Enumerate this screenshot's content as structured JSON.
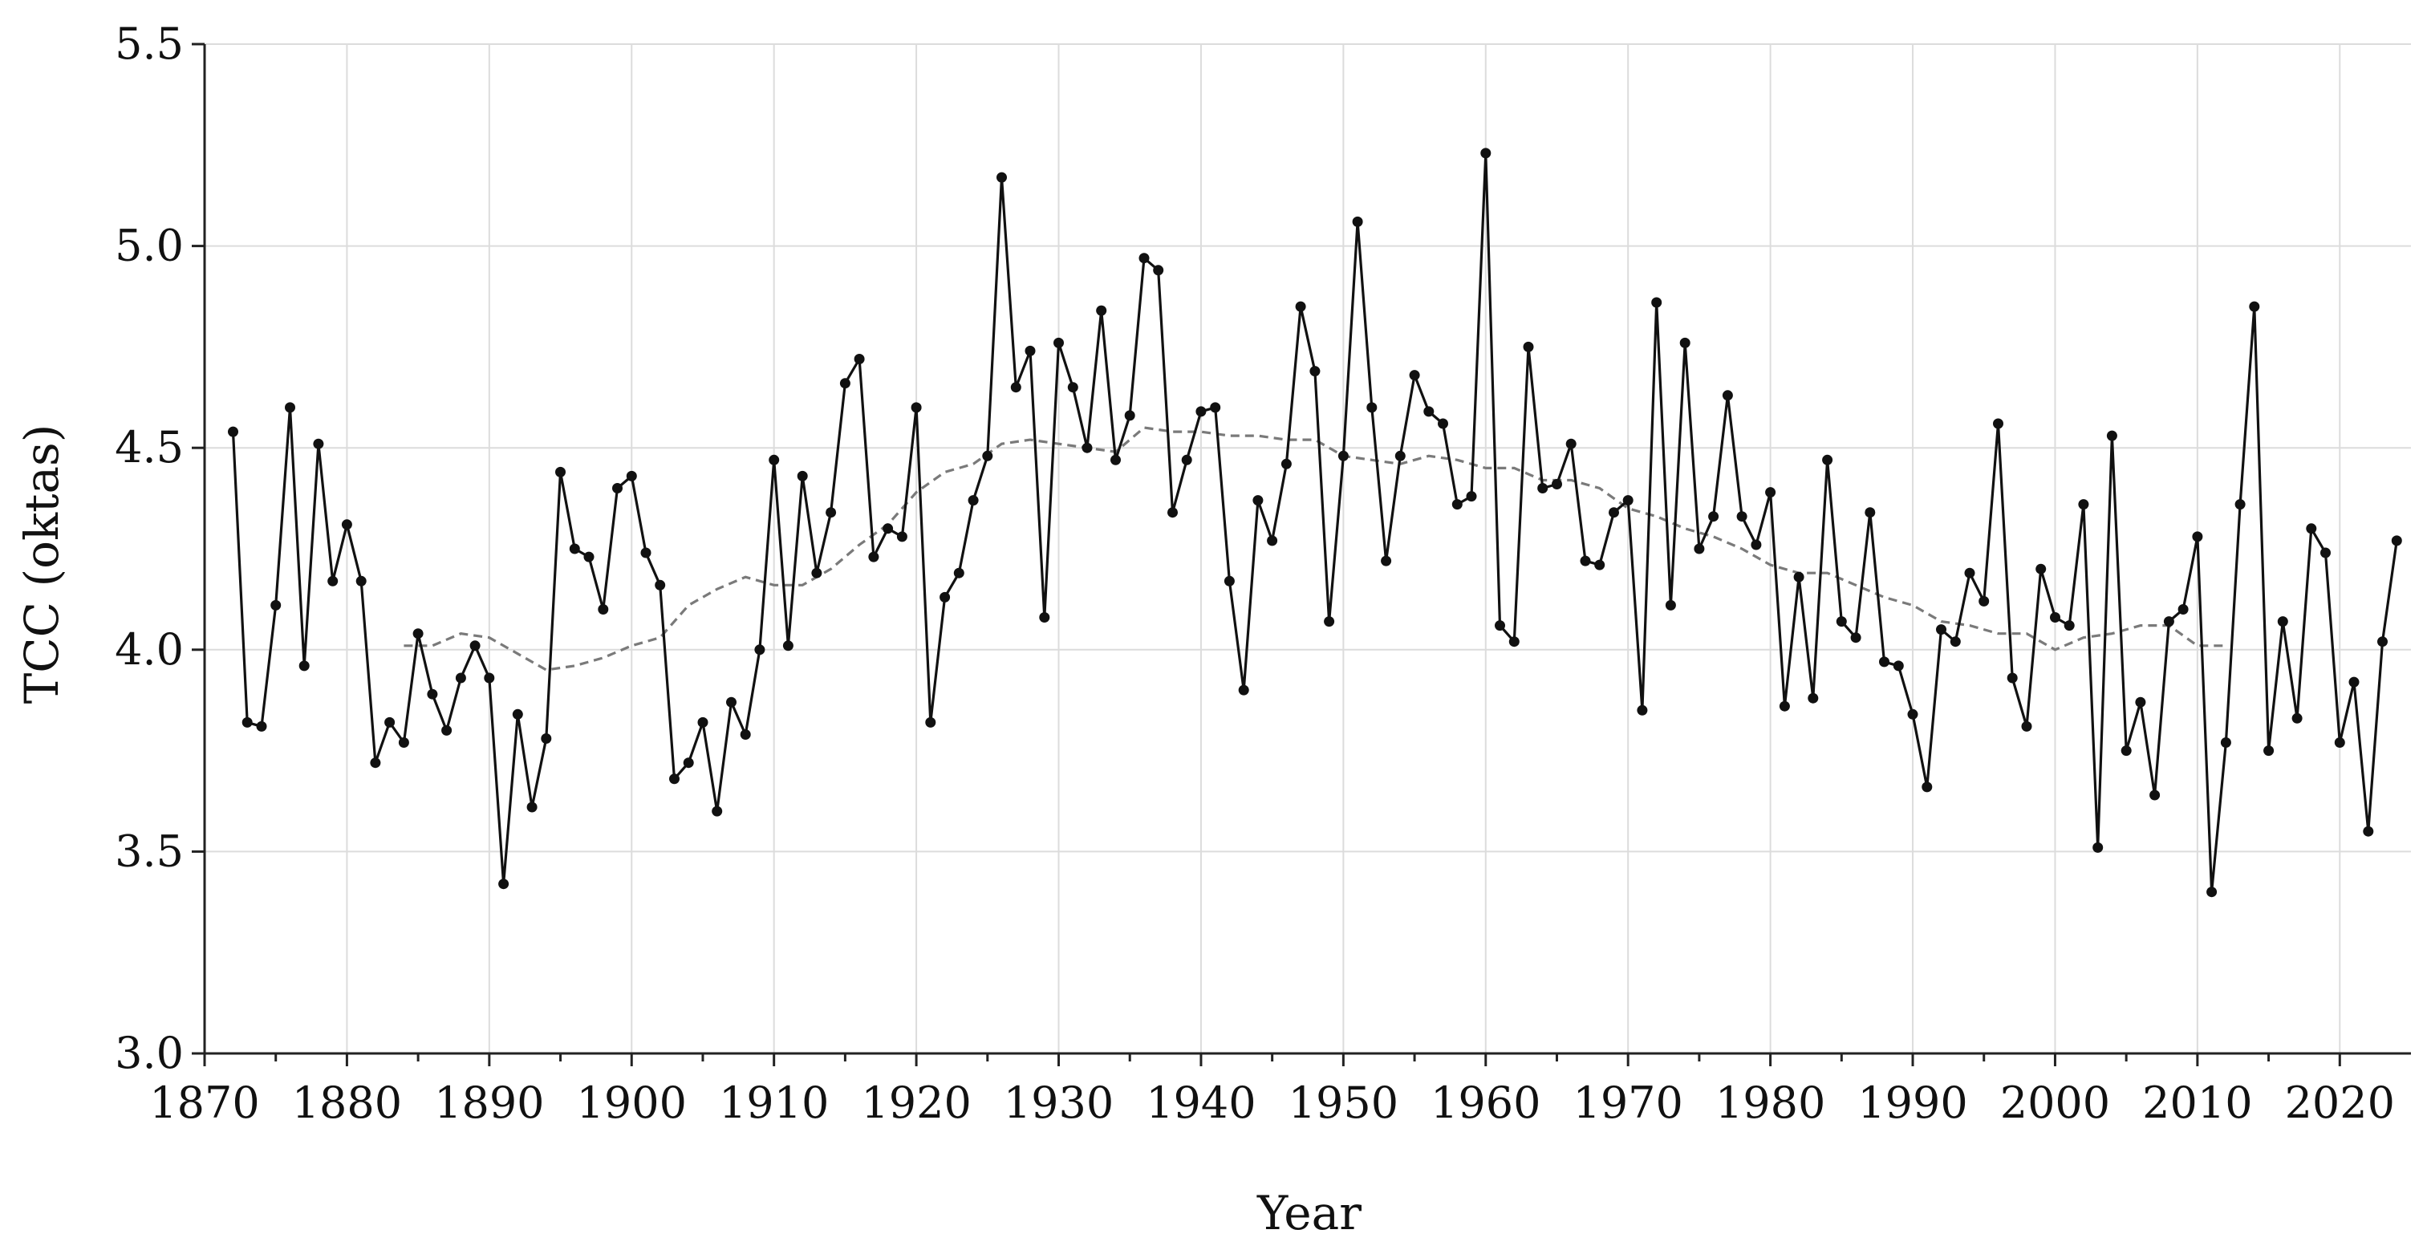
{
  "chart_data": {
    "type": "line",
    "title": "",
    "xlabel": "Year",
    "ylabel": "TCC (oktas)",
    "xlim": [
      1870,
      2025
    ],
    "ylim": [
      3.0,
      5.5
    ],
    "x_ticks": [
      1870,
      1880,
      1890,
      1900,
      1910,
      1920,
      1930,
      1940,
      1950,
      1960,
      1970,
      1980,
      1990,
      2000,
      2010,
      2020
    ],
    "y_ticks": [
      "3.0",
      "3.5",
      "4.0",
      "4.5",
      "5.0",
      "5.5"
    ],
    "grid": true,
    "colors": {
      "series": "#111111",
      "moving_average": "#7a7a7a"
    },
    "series": [
      {
        "style": "solid-markers",
        "x": [
          1872,
          1873,
          1874,
          1875,
          1876,
          1877,
          1878,
          1879,
          1880,
          1881,
          1882,
          1883,
          1884,
          1885,
          1886,
          1887,
          1888,
          1889,
          1890,
          1891,
          1892,
          1893,
          1894,
          1895,
          1896,
          1897,
          1898,
          1899,
          1900,
          1901,
          1902,
          1903,
          1904,
          1905,
          1906,
          1907,
          1908,
          1909,
          1910,
          1911,
          1912,
          1913,
          1914,
          1915,
          1916,
          1917,
          1918,
          1919,
          1920,
          1921,
          1922,
          1923,
          1924,
          1925,
          1926,
          1927,
          1928,
          1929,
          1930,
          1931,
          1932,
          1933,
          1934,
          1935,
          1936,
          1937,
          1938,
          1939,
          1940,
          1941,
          1942,
          1943,
          1944,
          1945,
          1946,
          1947,
          1948,
          1949,
          1950,
          1951,
          1952,
          1953,
          1954,
          1955,
          1956,
          1957,
          1958,
          1959,
          1960,
          1961,
          1962,
          1963,
          1964,
          1965,
          1966,
          1967,
          1968,
          1969,
          1970,
          1971,
          1972,
          1973,
          1974,
          1975,
          1976,
          1977,
          1978,
          1979,
          1980,
          1981,
          1982,
          1983,
          1984,
          1985,
          1986,
          1987,
          1988,
          1989,
          1990,
          1991,
          1992,
          1993,
          1994,
          1995,
          1996,
          1997,
          1998,
          1999,
          2000,
          2001,
          2002,
          2003,
          2004,
          2005,
          2006,
          2007,
          2008,
          2009,
          2010,
          2011,
          2012,
          2013,
          2014,
          2015,
          2016,
          2017,
          2018,
          2019,
          2020,
          2021,
          2022,
          2023,
          2024
        ],
        "y": [
          4.54,
          3.82,
          3.81,
          4.11,
          4.6,
          3.96,
          4.51,
          4.17,
          4.31,
          4.17,
          3.72,
          3.82,
          3.77,
          4.04,
          3.89,
          3.8,
          3.93,
          4.01,
          3.93,
          3.42,
          3.84,
          3.61,
          3.78,
          4.44,
          4.25,
          4.23,
          4.1,
          4.4,
          4.43,
          4.24,
          4.16,
          3.68,
          3.72,
          3.82,
          3.6,
          3.87,
          3.79,
          4.0,
          4.47,
          4.01,
          4.43,
          4.19,
          4.34,
          4.66,
          4.72,
          4.23,
          4.3,
          4.28,
          4.6,
          3.82,
          4.13,
          4.19,
          4.37,
          4.48,
          5.17,
          4.65,
          4.74,
          4.08,
          4.76,
          4.65,
          4.5,
          4.84,
          4.47,
          4.58,
          4.97,
          4.94,
          4.34,
          4.47,
          4.59,
          4.6,
          4.17,
          3.9,
          4.37,
          4.27,
          4.46,
          4.85,
          4.69,
          4.07,
          4.48,
          5.06,
          4.6,
          4.22,
          4.48,
          4.68,
          4.59,
          4.56,
          4.36,
          4.38,
          5.23,
          4.06,
          4.02,
          4.75,
          4.4,
          4.41,
          4.51,
          4.22,
          4.21,
          4.34,
          4.37,
          3.85,
          4.86,
          4.11,
          4.76,
          4.25,
          4.33,
          4.63,
          4.33,
          4.26,
          4.39,
          3.86,
          4.18,
          3.88,
          4.47,
          4.07,
          4.03,
          4.34,
          3.97,
          3.96,
          3.84,
          3.66,
          4.05,
          4.02,
          4.19,
          4.12,
          4.56,
          3.93,
          3.81,
          4.2,
          4.08,
          4.06,
          4.36,
          3.51,
          4.53,
          3.75,
          3.87,
          3.64,
          4.07,
          4.1,
          4.28,
          3.4,
          3.77,
          4.36,
          4.85,
          3.75,
          4.07,
          3.83,
          4.3,
          4.24,
          3.77,
          3.92,
          3.55,
          4.02,
          4.27
        ]
      },
      {
        "style": "dashed-moving-average",
        "x": [
          1884,
          1886,
          1888,
          1890,
          1892,
          1894,
          1896,
          1898,
          1900,
          1902,
          1904,
          1906,
          1908,
          1910,
          1912,
          1914,
          1916,
          1918,
          1920,
          1922,
          1924,
          1926,
          1928,
          1930,
          1932,
          1934,
          1936,
          1938,
          1940,
          1942,
          1944,
          1946,
          1948,
          1950,
          1952,
          1954,
          1956,
          1958,
          1960,
          1962,
          1964,
          1966,
          1968,
          1970,
          1972,
          1974,
          1976,
          1978,
          1980,
          1982,
          1984,
          1986,
          1988,
          1990,
          1992,
          1994,
          1996,
          1998,
          2000,
          2002,
          2004,
          2006,
          2008,
          2010,
          2012
        ],
        "y": [
          4.01,
          4.01,
          4.04,
          4.03,
          3.99,
          3.95,
          3.96,
          3.98,
          4.01,
          4.03,
          4.11,
          4.15,
          4.18,
          4.16,
          4.16,
          4.2,
          4.26,
          4.31,
          4.39,
          4.44,
          4.46,
          4.51,
          4.52,
          4.51,
          4.5,
          4.49,
          4.55,
          4.54,
          4.54,
          4.53,
          4.53,
          4.52,
          4.52,
          4.48,
          4.47,
          4.46,
          4.48,
          4.47,
          4.45,
          4.45,
          4.42,
          4.42,
          4.4,
          4.35,
          4.33,
          4.3,
          4.28,
          4.25,
          4.21,
          4.19,
          4.19,
          4.16,
          4.13,
          4.11,
          4.07,
          4.06,
          4.04,
          4.04,
          4.0,
          4.03,
          4.04,
          4.06,
          4.06,
          4.01,
          4.01
        ]
      }
    ]
  }
}
